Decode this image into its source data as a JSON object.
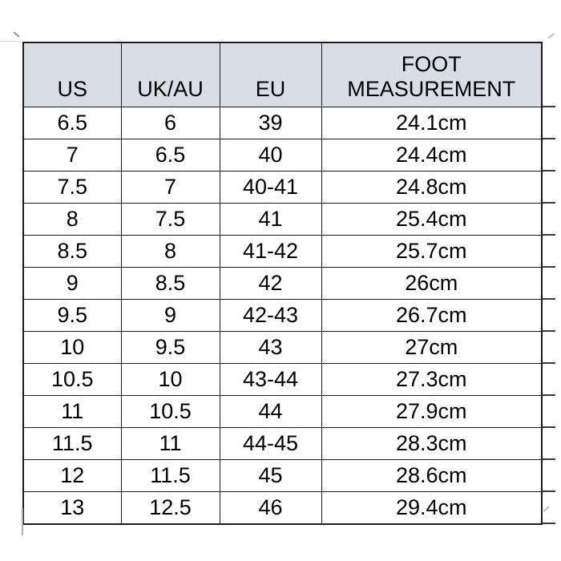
{
  "chart_data": {
    "type": "table",
    "columns": [
      "US",
      "UK/AU",
      "EU",
      "FOOT MEASUREMENT"
    ],
    "rows": [
      [
        "6.5",
        "6",
        "39",
        "24.1cm"
      ],
      [
        "7",
        "6.5",
        "40",
        "24.4cm"
      ],
      [
        "7.5",
        "7",
        "40-41",
        "24.8cm"
      ],
      [
        "8",
        "7.5",
        "41",
        "25.4cm"
      ],
      [
        "8.5",
        "8",
        "41-42",
        "25.7cm"
      ],
      [
        "9",
        "8.5",
        "42",
        "26cm"
      ],
      [
        "9.5",
        "9",
        "42-43",
        "26.7cm"
      ],
      [
        "10",
        "9.5",
        "43",
        "27cm"
      ],
      [
        "10.5",
        "10",
        "43-44",
        "27.3cm"
      ],
      [
        "11",
        "10.5",
        "44",
        "27.9cm"
      ],
      [
        "11.5",
        "11",
        "44-45",
        "28.3cm"
      ],
      [
        "12",
        "11.5",
        "45",
        "28.6cm"
      ],
      [
        "13",
        "12.5",
        "46",
        "29.4cm"
      ]
    ],
    "layout": {
      "grid": "on",
      "legend": "none",
      "header_bg": "#d9dde6",
      "border_color": "#1c1c1c",
      "text_color": "#000000",
      "background": "#ffffff"
    }
  }
}
